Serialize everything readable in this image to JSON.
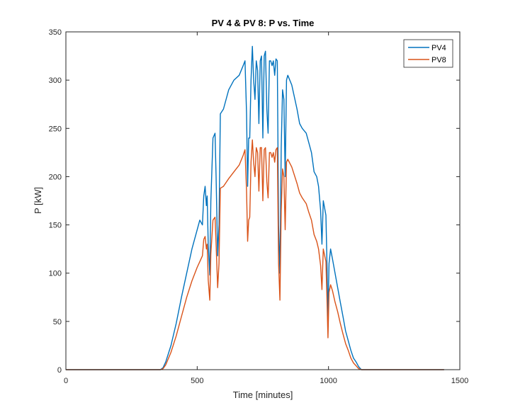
{
  "chart_data": {
    "type": "line",
    "title": "PV 4 & PV 8: P vs. Time",
    "xlabel": "Time [minutes]",
    "ylabel": "P [kW]",
    "xlim": [
      0,
      1500
    ],
    "ylim": [
      0,
      350
    ],
    "xticks": [
      0,
      500,
      1000,
      1500
    ],
    "yticks": [
      0,
      50,
      100,
      150,
      200,
      250,
      300,
      350
    ],
    "grid": false,
    "legend_position": "top-right",
    "series": [
      {
        "name": "PV4",
        "color": "#0072BD",
        "points": [
          [
            0,
            0
          ],
          [
            360,
            0
          ],
          [
            370,
            2
          ],
          [
            380,
            8
          ],
          [
            400,
            25
          ],
          [
            420,
            48
          ],
          [
            440,
            75
          ],
          [
            460,
            100
          ],
          [
            480,
            125
          ],
          [
            500,
            145
          ],
          [
            510,
            155
          ],
          [
            520,
            150
          ],
          [
            525,
            180
          ],
          [
            530,
            190
          ],
          [
            535,
            170
          ],
          [
            538,
            180
          ],
          [
            542,
            130
          ],
          [
            548,
            98
          ],
          [
            552,
            175
          ],
          [
            560,
            240
          ],
          [
            568,
            245
          ],
          [
            572,
            200
          ],
          [
            578,
            118
          ],
          [
            583,
            150
          ],
          [
            588,
            265
          ],
          [
            600,
            270
          ],
          [
            620,
            290
          ],
          [
            640,
            300
          ],
          [
            660,
            305
          ],
          [
            675,
            315
          ],
          [
            682,
            320
          ],
          [
            688,
            265
          ],
          [
            692,
            190
          ],
          [
            696,
            240
          ],
          [
            700,
            240
          ],
          [
            705,
            300
          ],
          [
            710,
            335
          ],
          [
            715,
            300
          ],
          [
            720,
            280
          ],
          [
            725,
            320
          ],
          [
            730,
            310
          ],
          [
            735,
            255
          ],
          [
            740,
            320
          ],
          [
            745,
            325
          ],
          [
            750,
            240
          ],
          [
            755,
            325
          ],
          [
            760,
            330
          ],
          [
            765,
            270
          ],
          [
            770,
            245
          ],
          [
            775,
            320
          ],
          [
            780,
            320
          ],
          [
            785,
            315
          ],
          [
            790,
            320
          ],
          [
            795,
            305
          ],
          [
            800,
            322
          ],
          [
            805,
            320
          ],
          [
            810,
            150
          ],
          [
            815,
            100
          ],
          [
            820,
            230
          ],
          [
            825,
            290
          ],
          [
            830,
            280
          ],
          [
            835,
            200
          ],
          [
            840,
            300
          ],
          [
            845,
            305
          ],
          [
            860,
            295
          ],
          [
            880,
            270
          ],
          [
            890,
            255
          ],
          [
            900,
            250
          ],
          [
            915,
            245
          ],
          [
            925,
            235
          ],
          [
            935,
            225
          ],
          [
            945,
            205
          ],
          [
            955,
            200
          ],
          [
            962,
            190
          ],
          [
            970,
            165
          ],
          [
            975,
            130
          ],
          [
            980,
            175
          ],
          [
            990,
            160
          ],
          [
            995,
            100
          ],
          [
            998,
            50
          ],
          [
            1002,
            110
          ],
          [
            1008,
            125
          ],
          [
            1015,
            115
          ],
          [
            1025,
            100
          ],
          [
            1035,
            85
          ],
          [
            1045,
            70
          ],
          [
            1055,
            55
          ],
          [
            1065,
            40
          ],
          [
            1075,
            30
          ],
          [
            1085,
            20
          ],
          [
            1095,
            12
          ],
          [
            1105,
            8
          ],
          [
            1115,
            3
          ],
          [
            1125,
            0
          ],
          [
            1440,
            0
          ]
        ]
      },
      {
        "name": "PV8",
        "color": "#D95319",
        "points": [
          [
            0,
            0
          ],
          [
            360,
            0
          ],
          [
            370,
            1
          ],
          [
            380,
            5
          ],
          [
            400,
            18
          ],
          [
            420,
            35
          ],
          [
            440,
            55
          ],
          [
            460,
            75
          ],
          [
            480,
            92
          ],
          [
            500,
            106
          ],
          [
            510,
            112
          ],
          [
            520,
            118
          ],
          [
            525,
            135
          ],
          [
            530,
            138
          ],
          [
            535,
            125
          ],
          [
            538,
            130
          ],
          [
            542,
            93
          ],
          [
            548,
            72
          ],
          [
            552,
            120
          ],
          [
            560,
            155
          ],
          [
            568,
            158
          ],
          [
            572,
            130
          ],
          [
            578,
            85
          ],
          [
            583,
            110
          ],
          [
            588,
            188
          ],
          [
            600,
            190
          ],
          [
            620,
            198
          ],
          [
            640,
            205
          ],
          [
            660,
            212
          ],
          [
            675,
            222
          ],
          [
            682,
            228
          ],
          [
            688,
            185
          ],
          [
            692,
            133
          ],
          [
            696,
            155
          ],
          [
            700,
            158
          ],
          [
            705,
            215
          ],
          [
            710,
            238
          ],
          [
            715,
            215
          ],
          [
            720,
            200
          ],
          [
            725,
            230
          ],
          [
            730,
            225
          ],
          [
            735,
            185
          ],
          [
            740,
            230
          ],
          [
            745,
            230
          ],
          [
            750,
            175
          ],
          [
            755,
            228
          ],
          [
            760,
            230
          ],
          [
            765,
            195
          ],
          [
            770,
            178
          ],
          [
            775,
            225
          ],
          [
            780,
            225
          ],
          [
            785,
            220
          ],
          [
            790,
            225
          ],
          [
            795,
            215
          ],
          [
            800,
            228
          ],
          [
            805,
            230
          ],
          [
            810,
            110
          ],
          [
            815,
            72
          ],
          [
            820,
            165
          ],
          [
            825,
            208
          ],
          [
            830,
            200
          ],
          [
            835,
            145
          ],
          [
            840,
            215
          ],
          [
            845,
            218
          ],
          [
            860,
            210
          ],
          [
            880,
            193
          ],
          [
            890,
            183
          ],
          [
            900,
            178
          ],
          [
            915,
            172
          ],
          [
            925,
            163
          ],
          [
            935,
            155
          ],
          [
            945,
            140
          ],
          [
            955,
            133
          ],
          [
            962,
            125
          ],
          [
            970,
            108
          ],
          [
            975,
            83
          ],
          [
            980,
            125
          ],
          [
            990,
            112
          ],
          [
            995,
            65
          ],
          [
            998,
            33
          ],
          [
            1002,
            80
          ],
          [
            1008,
            88
          ],
          [
            1015,
            82
          ],
          [
            1025,
            70
          ],
          [
            1035,
            60
          ],
          [
            1045,
            48
          ],
          [
            1055,
            37
          ],
          [
            1065,
            27
          ],
          [
            1075,
            20
          ],
          [
            1085,
            12
          ],
          [
            1095,
            7
          ],
          [
            1105,
            4
          ],
          [
            1115,
            1
          ],
          [
            1125,
            0
          ],
          [
            1440,
            0
          ]
        ]
      }
    ]
  }
}
